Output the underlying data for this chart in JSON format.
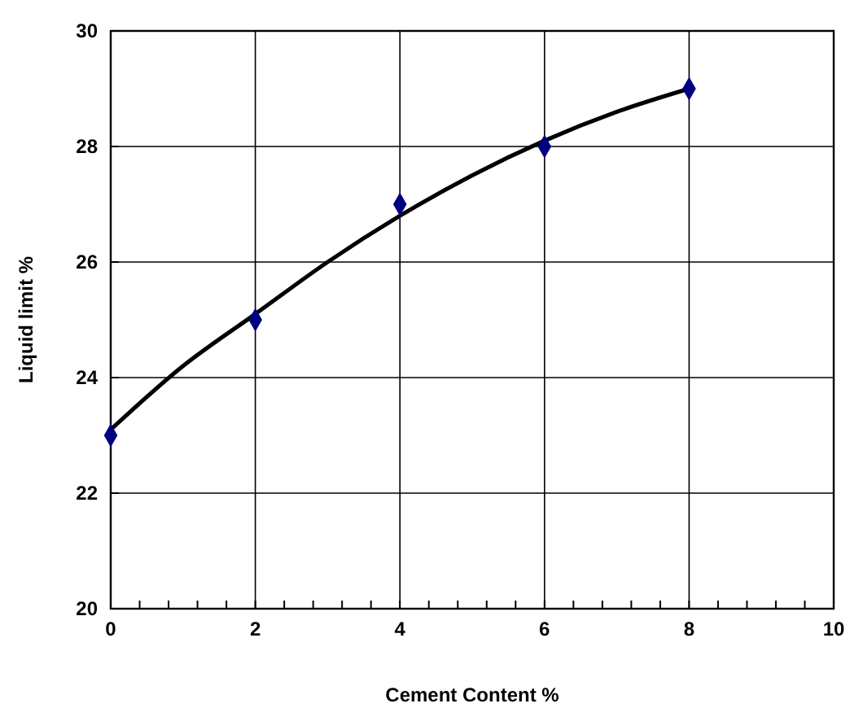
{
  "chart_data": {
    "type": "scatter",
    "xlabel": "Cement Content %",
    "ylabel": "Liquid limit %",
    "xlim": [
      0,
      10
    ],
    "ylim": [
      20,
      30
    ],
    "xticks": [
      0,
      {
        "value": 0.4,
        "label": null
      },
      {
        "value": 0.8,
        "label": null
      },
      {
        "value": 1.2,
        "label": null
      },
      {
        "value": 1.6,
        "label": null
      },
      2,
      {
        "value": 2.4,
        "label": null
      },
      {
        "value": 2.8,
        "label": null
      },
      {
        "value": 3.2,
        "label": null
      },
      {
        "value": 3.6,
        "label": null
      },
      4,
      {
        "value": 4.4,
        "label": null
      },
      {
        "value": 4.8,
        "label": null
      },
      {
        "value": 5.2,
        "label": null
      },
      {
        "value": 5.6,
        "label": null
      },
      6,
      {
        "value": 6.4,
        "label": null
      },
      {
        "value": 6.8,
        "label": null
      },
      {
        "value": 7.2,
        "label": null
      },
      {
        "value": 7.6,
        "label": null
      },
      8,
      {
        "value": 8.4,
        "label": null
      },
      {
        "value": 8.8,
        "label": null
      },
      {
        "value": 9.2,
        "label": null
      },
      {
        "value": 9.6,
        "label": null
      },
      10
    ],
    "yticks": [
      20,
      22,
      24,
      26,
      28,
      30
    ],
    "grid": true,
    "series": [
      {
        "marker": "diamond",
        "color": "#000080",
        "x": [
          0,
          2,
          4,
          6,
          8
        ],
        "values": [
          23,
          25,
          27,
          28,
          29
        ]
      },
      {
        "type": "line",
        "color": "#000000",
        "x": [
          0,
          1,
          2,
          3,
          4,
          5,
          6,
          7,
          8
        ],
        "values": [
          23.1,
          24.2,
          25.1,
          26.0,
          26.8,
          27.5,
          28.1,
          28.6,
          29.0
        ]
      }
    ]
  }
}
